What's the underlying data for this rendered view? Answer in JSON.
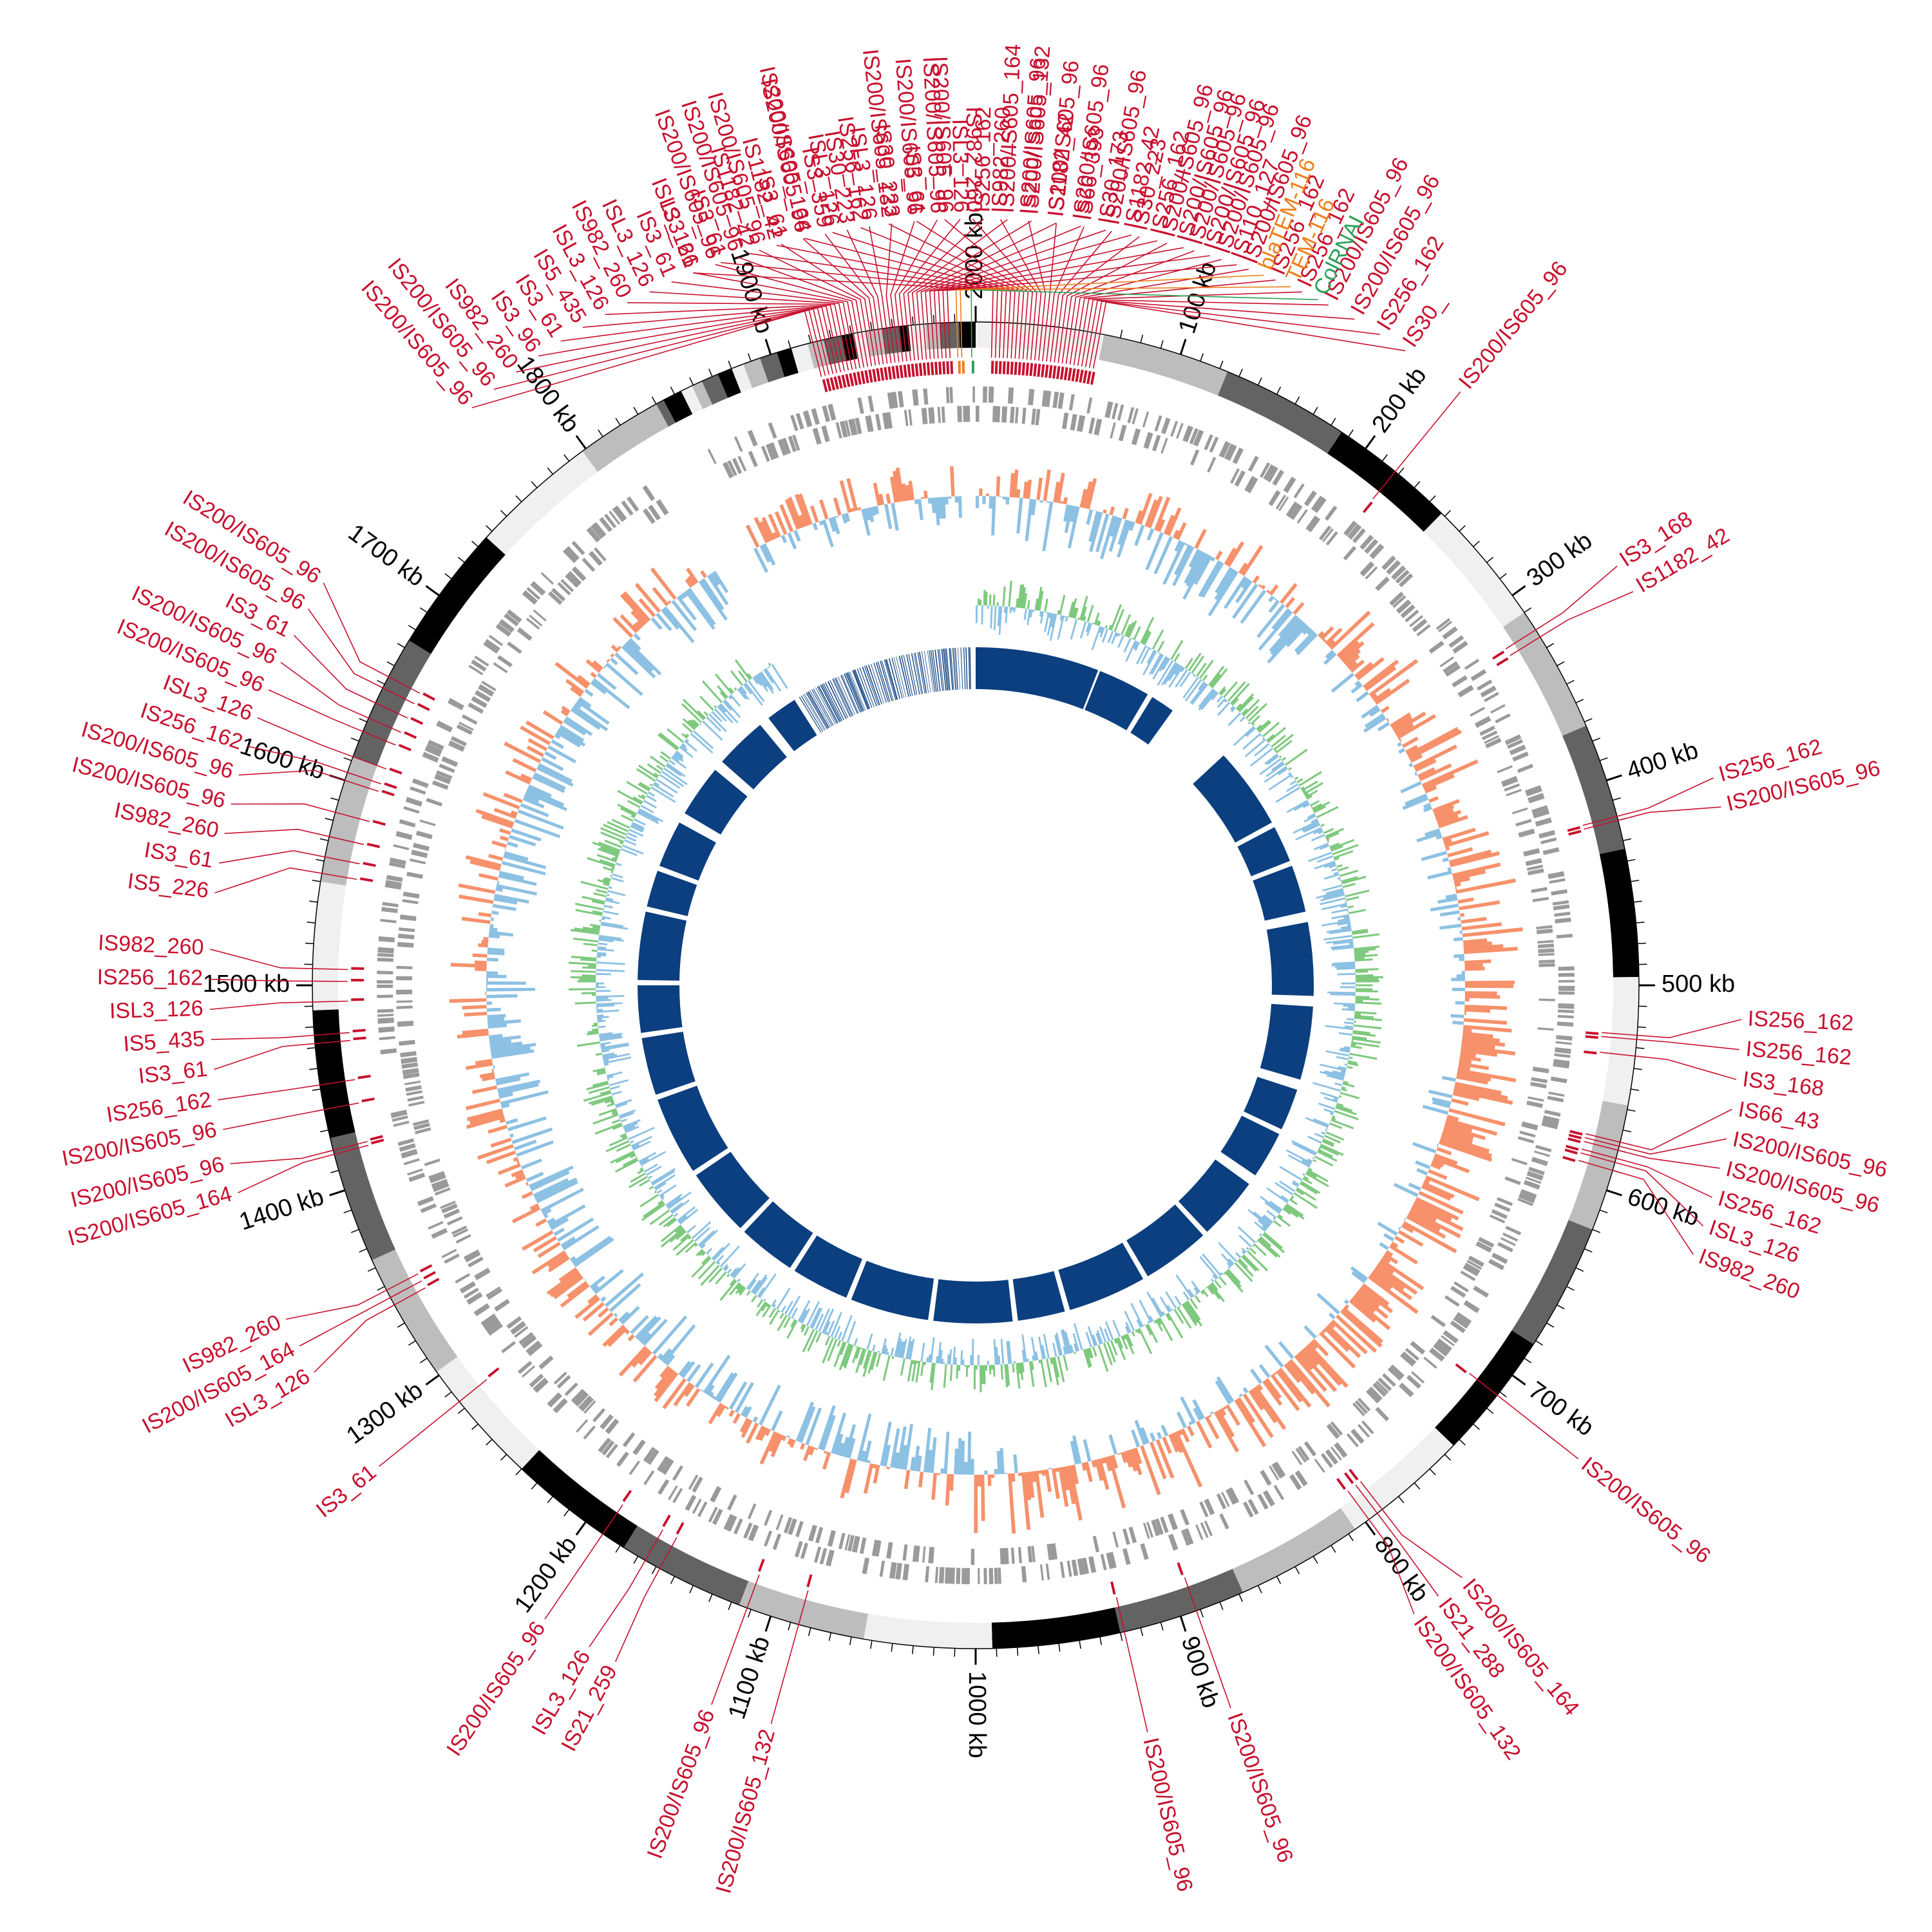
{
  "genome": {
    "length_kb": 2000,
    "tick_labels": [
      {
        "kb": 2000,
        "label": "2000 kb"
      },
      {
        "kb": 100,
        "label": "100 kb"
      },
      {
        "kb": 200,
        "label": "200 kb"
      },
      {
        "kb": 300,
        "label": "300 kb"
      },
      {
        "kb": 400,
        "label": "400 kb"
      },
      {
        "kb": 500,
        "label": "500 kb"
      },
      {
        "kb": 600,
        "label": "600 kb"
      },
      {
        "kb": 700,
        "label": "700 kb"
      },
      {
        "kb": 800,
        "label": "800 kb"
      },
      {
        "kb": 900,
        "label": "900 kb"
      },
      {
        "kb": 1000,
        "label": "1000 kb"
      },
      {
        "kb": 1100,
        "label": "1100 kb"
      },
      {
        "kb": 1200,
        "label": "1200 kb"
      },
      {
        "kb": 1300,
        "label": "1300 kb"
      },
      {
        "kb": 1400,
        "label": "1400 kb"
      },
      {
        "kb": 1500,
        "label": "1500 kb"
      },
      {
        "kb": 1600,
        "label": "1600 kb"
      },
      {
        "kb": 1700,
        "label": "1700 kb"
      },
      {
        "kb": 1800,
        "label": "1800 kb"
      },
      {
        "kb": 1900,
        "label": "1900 kb"
      }
    ]
  },
  "colors": {
    "is_element": "#c8102e",
    "resistance_gene": "#ee7d1a",
    "replicon": "#2ca05a",
    "gc_skew_pos": "#f6916b",
    "gc_skew_neg": "#8dc1e3",
    "gc_content": "#7fc97f",
    "gc_content_neg": "#8dc1e3",
    "contigs": "#0b3f7f",
    "genes": "#9a9a9a"
  },
  "annotations": [
    {
      "kb": 1993,
      "label": "TEM-116",
      "type": "resistance"
    },
    {
      "kb": 1991,
      "label": "blaTEM-116",
      "type": "resistance"
    },
    {
      "kb": 1998,
      "label": "ColRNAI",
      "type": "replicon"
    },
    {
      "kb": 1987,
      "label": "IS110_127",
      "type": "is"
    },
    {
      "kb": 1985,
      "label": "IS200/IS605_96",
      "type": "is"
    },
    {
      "kb": 1983,
      "label": "IS200/IS605_96",
      "type": "is"
    },
    {
      "kb": 1981,
      "label": "IS256_162",
      "type": "is"
    },
    {
      "kb": 1979,
      "label": "IS1182_42",
      "type": "is"
    },
    {
      "kb": 1977,
      "label": "IS30_173",
      "type": "is"
    },
    {
      "kb": 1975,
      "label": "IS200/IS605_96",
      "type": "is"
    },
    {
      "kb": 1973,
      "label": "IS200/IS605_96",
      "type": "is"
    },
    {
      "kb": 1971,
      "label": "IS200/IS605_132",
      "type": "is"
    },
    {
      "kb": 1969,
      "label": "IS200/IS605_164",
      "type": "is"
    },
    {
      "kb": 1967,
      "label": "IS256_162",
      "type": "is"
    },
    {
      "kb": 1965,
      "label": "ISL3_126",
      "type": "is"
    },
    {
      "kb": 1963,
      "label": "IS200/IS605_96",
      "type": "is"
    },
    {
      "kb": 1961,
      "label": "IS200/IS605_96",
      "type": "is"
    },
    {
      "kb": 1959,
      "label": "IS30_223",
      "type": "is"
    },
    {
      "kb": 1957,
      "label": "ISL3_126",
      "type": "is"
    },
    {
      "kb": 1955,
      "label": "IS30_223",
      "type": "is"
    },
    {
      "kb": 1953,
      "label": "IS3_359",
      "type": "is"
    },
    {
      "kb": 1951,
      "label": "IS200/IS605_96",
      "type": "is"
    },
    {
      "kb": 1949,
      "label": "IS3_61",
      "type": "is"
    },
    {
      "kb": 1947,
      "label": "IS200/IS605_96",
      "type": "is"
    },
    {
      "kb": 1945,
      "label": "IS200/IS605_96",
      "type": "is"
    },
    {
      "kb": 1943,
      "label": "IS200/IS605_96",
      "type": "is"
    },
    {
      "kb": 1941,
      "label": "ISL3_126",
      "type": "is"
    },
    {
      "kb": 1939,
      "label": "IS3_61",
      "type": "is"
    },
    {
      "kb": 1937,
      "label": "ISL3_126",
      "type": "is"
    },
    {
      "kb": 1935,
      "label": "IS982_260",
      "type": "is"
    },
    {
      "kb": 1933,
      "label": "ISL3_126",
      "type": "is"
    },
    {
      "kb": 1931,
      "label": "IS5_435",
      "type": "is"
    },
    {
      "kb": 1929,
      "label": "IS3_61",
      "type": "is"
    },
    {
      "kb": 1927,
      "label": "IS3_96",
      "type": "is"
    },
    {
      "kb": 1925,
      "label": "IS982_260",
      "type": "is"
    },
    {
      "kb": 1923,
      "label": "IS200/IS605_96",
      "type": "is"
    },
    {
      "kb": 1921,
      "label": "IS200/IS605_96",
      "type": "is"
    },
    {
      "kb": 8,
      "label": "IS3_61",
      "type": "is"
    },
    {
      "kb": 10,
      "label": "IS3_61",
      "type": "is"
    },
    {
      "kb": 12,
      "label": "IS1182_42",
      "type": "is"
    },
    {
      "kb": 14,
      "label": "IS1182_42",
      "type": "is"
    },
    {
      "kb": 16,
      "label": "IS200/IS605_164",
      "type": "is"
    },
    {
      "kb": 18,
      "label": "ISL3_126",
      "type": "is"
    },
    {
      "kb": 20,
      "label": "IS256_162",
      "type": "is"
    },
    {
      "kb": 22,
      "label": "IS200/IS605_132",
      "type": "is"
    },
    {
      "kb": 24,
      "label": "IS3_61",
      "type": "is"
    },
    {
      "kb": 26,
      "label": "IS200/IS605_96",
      "type": "is"
    },
    {
      "kb": 28,
      "label": "IS982_260",
      "type": "is"
    },
    {
      "kb": 30,
      "label": "IS982_260",
      "type": "is"
    },
    {
      "kb": 32,
      "label": "IS200/IS605_96",
      "type": "is"
    },
    {
      "kb": 34,
      "label": "IS1182_42",
      "type": "is"
    },
    {
      "kb": 36,
      "label": "IS66_393",
      "type": "is"
    },
    {
      "kb": 38,
      "label": "IS200/IS605_96",
      "type": "is"
    },
    {
      "kb": 40,
      "label": "IS30_223",
      "type": "is"
    },
    {
      "kb": 42,
      "label": "IS200/IS605_96",
      "type": "is"
    },
    {
      "kb": 44,
      "label": "IS200/IS605_96",
      "type": "is"
    },
    {
      "kb": 46,
      "label": "IS200/IS605_96",
      "type": "is"
    },
    {
      "kb": 48,
      "label": "IS200/IS605_96",
      "type": "is"
    },
    {
      "kb": 50,
      "label": "IS256_162",
      "type": "is"
    },
    {
      "kb": 52,
      "label": "IS256_162",
      "type": "is"
    },
    {
      "kb": 54,
      "label": "IS200/IS605_96",
      "type": "is"
    },
    {
      "kb": 56,
      "label": "IS200/IS605_96",
      "type": "is"
    },
    {
      "kb": 58,
      "label": "IS256_162",
      "type": "is"
    },
    {
      "kb": 60,
      "label": "IS30_",
      "type": "is"
    },
    {
      "kb": 218,
      "label": "IS200/IS605_96",
      "type": "is"
    },
    {
      "kb": 320,
      "label": "IS3_168",
      "type": "is"
    },
    {
      "kb": 324,
      "label": "IS1182_42",
      "type": "is"
    },
    {
      "kb": 418,
      "label": "IS256_162",
      "type": "is"
    },
    {
      "kb": 420,
      "label": "IS200/IS605_96",
      "type": "is"
    },
    {
      "kb": 524,
      "label": "IS256_162",
      "type": "is"
    },
    {
      "kb": 526,
      "label": "IS256_162",
      "type": "is"
    },
    {
      "kb": 534,
      "label": "IS3_168",
      "type": "is"
    },
    {
      "kb": 576,
      "label": "IS66_43",
      "type": "is"
    },
    {
      "kb": 578,
      "label": "IS200/IS605_96",
      "type": "is"
    },
    {
      "kb": 580,
      "label": "IS200/IS605_96",
      "type": "is"
    },
    {
      "kb": 584,
      "label": "IS256_162",
      "type": "is"
    },
    {
      "kb": 586,
      "label": "ISL3_126",
      "type": "is"
    },
    {
      "kb": 590,
      "label": "IS982_260",
      "type": "is"
    },
    {
      "kb": 712,
      "label": "IS200/IS605_96",
      "type": "is"
    },
    {
      "kb": 790,
      "label": "IS200/IS605_164",
      "type": "is"
    },
    {
      "kb": 793,
      "label": "IS21_288",
      "type": "is"
    },
    {
      "kb": 798,
      "label": "IS200/IS605_132",
      "type": "is"
    },
    {
      "kb": 892,
      "label": "IS200/IS605_96",
      "type": "is"
    },
    {
      "kb": 928,
      "label": "IS200/IS605_96",
      "type": "is"
    },
    {
      "kb": 1086,
      "label": "IS200/IS605_132",
      "type": "is"
    },
    {
      "kb": 1112,
      "label": "IS200/IS605_96",
      "type": "is"
    },
    {
      "kb": 1158,
      "label": "IS21_259",
      "type": "is"
    },
    {
      "kb": 1166,
      "label": "ISL3_126",
      "type": "is"
    },
    {
      "kb": 1190,
      "label": "IS200/IS605_96",
      "type": "is"
    },
    {
      "kb": 1284,
      "label": "IS3_61",
      "type": "is"
    },
    {
      "kb": 1340,
      "label": "ISL3_126",
      "type": "is"
    },
    {
      "kb": 1344,
      "label": "IS200/IS605_164",
      "type": "is"
    },
    {
      "kb": 1348,
      "label": "IS982_260",
      "type": "is"
    },
    {
      "kb": 1418,
      "label": "IS200/IS605_164",
      "type": "is"
    },
    {
      "kb": 1420,
      "label": "IS200/IS605_96",
      "type": "is"
    },
    {
      "kb": 1440,
      "label": "IS200/IS605_96",
      "type": "is"
    },
    {
      "kb": 1452,
      "label": "IS256_162",
      "type": "is"
    },
    {
      "kb": 1472,
      "label": "IS3_61",
      "type": "is"
    },
    {
      "kb": 1476,
      "label": "IS5_435",
      "type": "is"
    },
    {
      "kb": 1492,
      "label": "ISL3_126",
      "type": "is"
    },
    {
      "kb": 1502,
      "label": "IS256_162",
      "type": "is"
    },
    {
      "kb": 1508,
      "label": "IS982_260",
      "type": "is"
    },
    {
      "kb": 1554,
      "label": "IS5_226",
      "type": "is"
    },
    {
      "kb": 1562,
      "label": "IS3_61",
      "type": "is"
    },
    {
      "kb": 1572,
      "label": "IS982_260",
      "type": "is"
    },
    {
      "kb": 1584,
      "label": "IS200/IS605_96",
      "type": "is"
    },
    {
      "kb": 1600,
      "label": "IS200/IS605_96",
      "type": "is"
    },
    {
      "kb": 1604,
      "label": "IS256_162",
      "type": "is"
    },
    {
      "kb": 1612,
      "label": "ISL3_126",
      "type": "is"
    },
    {
      "kb": 1625,
      "label": "IS200/IS605_96",
      "type": "is"
    },
    {
      "kb": 1632,
      "label": "IS200/IS605_96",
      "type": "is"
    },
    {
      "kb": 1640,
      "label": "IS3_61",
      "type": "is"
    },
    {
      "kb": 1648,
      "label": "IS200/IS605_96",
      "type": "is"
    },
    {
      "kb": 1654,
      "label": "IS200/IS605_96",
      "type": "is"
    }
  ]
}
